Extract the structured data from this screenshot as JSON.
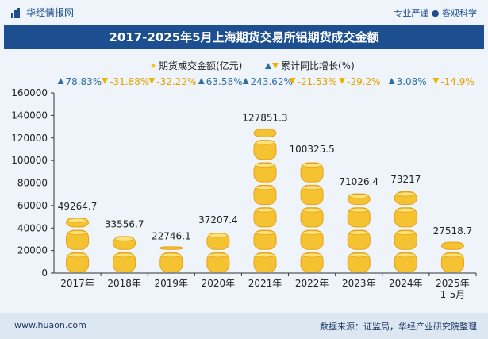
{
  "header": {
    "brand": "华经情报网",
    "tagline": "专业严谨 ● 客观科学",
    "title": "2017-2025年5月上海期货交易所铝期货成交金额"
  },
  "footer": {
    "url": "www.huaon.com",
    "source": "数据来源：证监局，华经产业研究院整理"
  },
  "colors": {
    "coin_fill": "#f5c232",
    "coin_rim": "#e6a417",
    "triangle_up": "#2e6da4",
    "triangle_down": "#f0b400",
    "growth_up_text": "#2e6da4",
    "growth_down_text": "#e3a100",
    "title_bg": "#1d4e8f"
  },
  "chart_data": {
    "type": "bar",
    "title": "2017-2025年5月上海期货交易所铝期货成交金额",
    "categories": [
      "2017年",
      "2018年",
      "2019年",
      "2020年",
      "2021年",
      "2022年",
      "2023年",
      "2024年",
      "2025年\n1-5月"
    ],
    "series": [
      {
        "name": "期货成交金额(亿元)",
        "values": [
          49264.7,
          33556.7,
          22746.1,
          37207.4,
          127851.3,
          100325.5,
          71026.4,
          73217,
          27518.7
        ]
      },
      {
        "name": "累计同比增长(%)",
        "values": [
          78.83,
          -31.88,
          -32.22,
          63.58,
          243.62,
          -21.53,
          -29.2,
          3.08,
          -14.9
        ]
      }
    ],
    "value_labels": [
      "49264.7",
      "33556.7",
      "22746.1",
      "37207.4",
      "127851.3",
      "100325.5",
      "71026.4",
      "73217",
      "27518.7"
    ],
    "growth_labels": [
      "78.83%",
      "-31.88%",
      "-32.22%",
      "63.58%",
      "243.62%",
      "-21.53%",
      "-29.2%",
      "3.08%",
      "-14.9%"
    ],
    "legend": {
      "bar": "期货成交金额(亿元)",
      "growth": "累计同比增长(%)",
      "placement": "top-center"
    },
    "yticks": [
      "0",
      "20000",
      "40000",
      "60000",
      "80000",
      "100000",
      "120000",
      "140000",
      "160000"
    ],
    "ylim": [
      0,
      160000
    ],
    "xlabel": "",
    "ylabel": ""
  }
}
